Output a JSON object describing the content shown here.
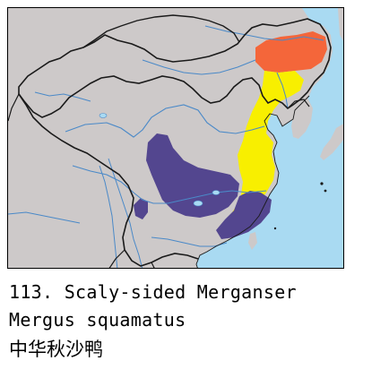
{
  "caption": {
    "number": "113.",
    "common_name": "Scaly-sided Merganser",
    "scientific_name": "Mergus squamatus",
    "chinese_name": "中华秋沙鸭"
  },
  "colors": {
    "sea": "#a9daf2",
    "land": "#cdc9c9",
    "border": "#1a1a1a",
    "river": "#4a89c8",
    "breeding_range": "#f4663a",
    "passage_range": "#f8ef00",
    "wintering_range": "#53468f"
  },
  "map": {
    "ranges": [
      {
        "kind": "breeding",
        "color": "#f4663a"
      },
      {
        "kind": "passage",
        "color": "#f8ef00"
      },
      {
        "kind": "wintering",
        "color": "#53468f"
      }
    ]
  }
}
